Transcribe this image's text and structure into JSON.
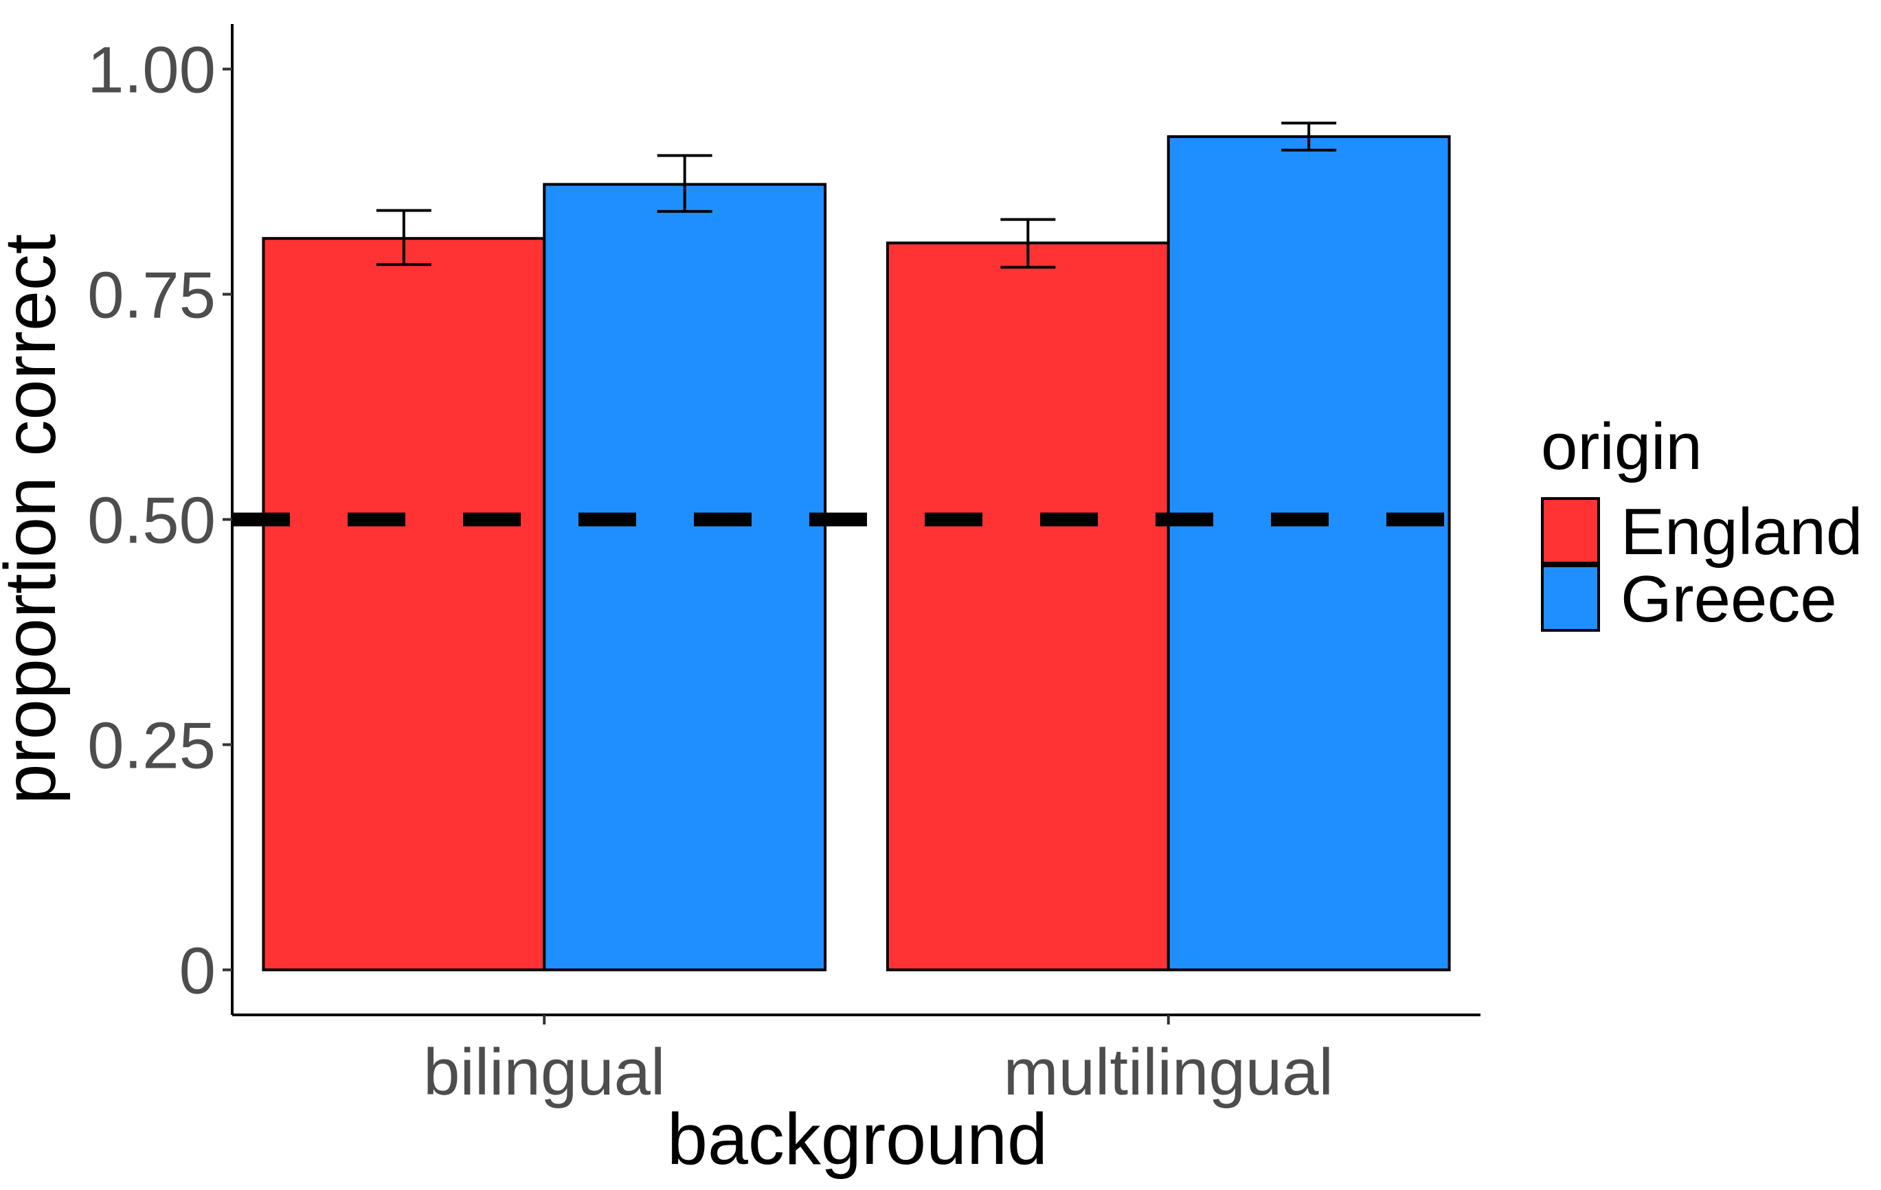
{
  "chart_data": {
    "type": "bar",
    "xlabel": "background",
    "ylabel": "proportion correct",
    "categories": [
      "bilingual",
      "multilingual"
    ],
    "ylim": [
      -0.05,
      1.05
    ],
    "yticks": [
      {
        "value": 0,
        "label": "0"
      },
      {
        "value": 0.25,
        "label": "0.25"
      },
      {
        "value": 0.5,
        "label": "0.50"
      },
      {
        "value": 0.75,
        "label": "0.75"
      },
      {
        "value": 1.0,
        "label": "1.00"
      }
    ],
    "reference_line": {
      "y": 0.5,
      "style": "dashed",
      "color": "#000000"
    },
    "legend": {
      "title": "origin",
      "placement": "right"
    },
    "series": [
      {
        "name": "England",
        "color": "#ff3333",
        "values": [
          0.812,
          0.807
        ],
        "error_low": [
          0.783,
          0.78
        ],
        "error_high": [
          0.843,
          0.833
        ]
      },
      {
        "name": "Greece",
        "color": "#1f8fff",
        "values": [
          0.872,
          0.925
        ],
        "error_low": [
          0.842,
          0.91
        ],
        "error_high": [
          0.904,
          0.94
        ]
      }
    ],
    "grid": false
  }
}
